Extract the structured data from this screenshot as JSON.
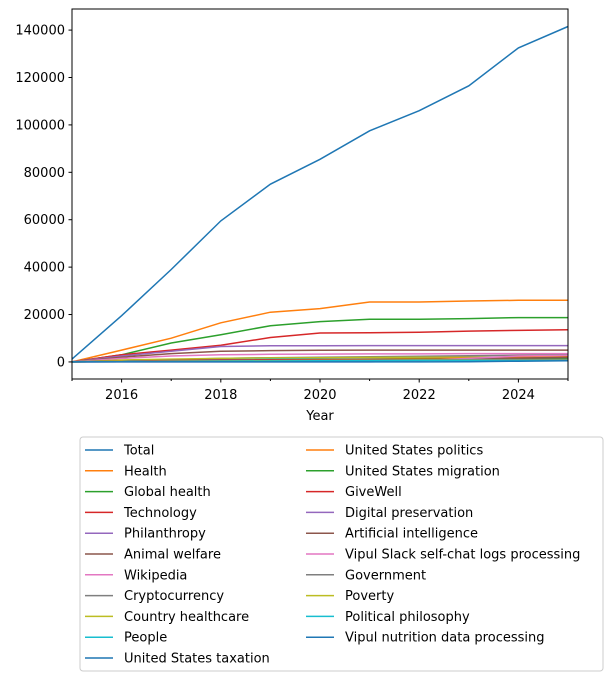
{
  "chart_data": {
    "type": "line",
    "title": "",
    "xlabel": "Year",
    "ylabel": "",
    "xlim": [
      2015,
      2025
    ],
    "ylim": [
      -7200,
      148900
    ],
    "xticks": [
      2016,
      2018,
      2020,
      2022,
      2024
    ],
    "yticks": [
      0,
      20000,
      40000,
      60000,
      80000,
      100000,
      120000,
      140000
    ],
    "grid": false,
    "legend_placement": "below",
    "x": [
      2015,
      2016,
      2017,
      2018,
      2019,
      2020,
      2021,
      2022,
      2023,
      2024,
      2025
    ],
    "series": [
      {
        "name": "Total",
        "color": "#1f77b4",
        "values": [
          1200,
          19500,
          39000,
          59500,
          75000,
          85500,
          97500,
          106000,
          116500,
          132500,
          141500
        ]
      },
      {
        "name": "Health",
        "color": "#ff7f0e",
        "values": [
          0,
          5000,
          10000,
          16500,
          21000,
          22500,
          25300,
          25300,
          25700,
          26000,
          26000
        ]
      },
      {
        "name": "Global health",
        "color": "#2ca02c",
        "values": [
          0,
          3000,
          8000,
          11500,
          15300,
          17000,
          18000,
          18000,
          18300,
          18700,
          18700
        ]
      },
      {
        "name": "Technology",
        "color": "#d62728",
        "values": [
          0,
          3000,
          5000,
          7000,
          10300,
          12200,
          12300,
          12500,
          13000,
          13300,
          13600
        ]
      },
      {
        "name": "Philanthropy",
        "color": "#9467bd",
        "values": [
          0,
          2500,
          4500,
          6500,
          6800,
          6800,
          6900,
          6900,
          6900,
          6900,
          6900
        ]
      },
      {
        "name": "Animal welfare",
        "color": "#8c564b",
        "values": [
          0,
          2000,
          3500,
          4500,
          4800,
          4900,
          5000,
          5000,
          5000,
          5000,
          5000
        ]
      },
      {
        "name": "Wikipedia",
        "color": "#e377c2",
        "values": [
          0,
          1500,
          2500,
          3000,
          3200,
          3300,
          3400,
          3400,
          3500,
          3500,
          3500
        ]
      },
      {
        "name": "Cryptocurrency",
        "color": "#7f7f7f",
        "values": [
          0,
          500,
          1000,
          1500,
          1800,
          2000,
          2200,
          2400,
          2600,
          2800,
          3000
        ]
      },
      {
        "name": "Country healthcare",
        "color": "#bcbd22",
        "values": [
          0,
          800,
          1200,
          1500,
          1700,
          1800,
          1900,
          2000,
          2000,
          2000,
          2000
        ]
      },
      {
        "name": "People",
        "color": "#17becf",
        "values": [
          0,
          300,
          600,
          900,
          1100,
          1200,
          1300,
          1400,
          1500,
          1600,
          1700
        ]
      },
      {
        "name": "United States taxation",
        "color": "#1f77b4",
        "values": [
          0,
          300,
          500,
          700,
          800,
          900,
          1000,
          1000,
          1100,
          1100,
          1100
        ]
      },
      {
        "name": "United States politics",
        "color": "#ff7f0e",
        "values": [
          0,
          200,
          400,
          600,
          800,
          1000,
          1200,
          1400,
          1600,
          2000,
          2200
        ]
      },
      {
        "name": "United States migration",
        "color": "#2ca02c",
        "values": [
          0,
          200,
          400,
          600,
          800,
          900,
          1000,
          1100,
          1200,
          1300,
          1400
        ]
      },
      {
        "name": "GiveWell",
        "color": "#d62728",
        "values": [
          0,
          300,
          600,
          800,
          900,
          1000,
          1000,
          1000,
          1000,
          1000,
          1000
        ]
      },
      {
        "name": "Digital preservation",
        "color": "#9467bd",
        "values": [
          0,
          100,
          200,
          300,
          400,
          500,
          600,
          700,
          800,
          900,
          1000
        ]
      },
      {
        "name": "Artificial intelligence",
        "color": "#8c564b",
        "values": [
          0,
          100,
          200,
          300,
          400,
          500,
          700,
          900,
          1200,
          1600,
          2000
        ]
      },
      {
        "name": "Vipul Slack self-chat logs processing",
        "color": "#e377c2",
        "values": [
          0,
          0,
          0,
          0,
          0,
          0,
          0,
          500,
          1500,
          2500,
          2800
        ]
      },
      {
        "name": "Government",
        "color": "#7f7f7f",
        "values": [
          0,
          200,
          400,
          500,
          600,
          700,
          800,
          900,
          1000,
          1000,
          1000
        ]
      },
      {
        "name": "Poverty",
        "color": "#bcbd22",
        "values": [
          0,
          200,
          300,
          400,
          500,
          600,
          600,
          700,
          700,
          700,
          700
        ]
      },
      {
        "name": "Political philosophy",
        "color": "#17becf",
        "values": [
          0,
          100,
          200,
          300,
          400,
          500,
          500,
          600,
          600,
          600,
          600
        ]
      },
      {
        "name": "Vipul nutrition data processing",
        "color": "#1f77b4",
        "values": [
          0,
          0,
          0,
          0,
          0,
          0,
          0,
          0,
          100,
          300,
          500
        ]
      }
    ]
  }
}
